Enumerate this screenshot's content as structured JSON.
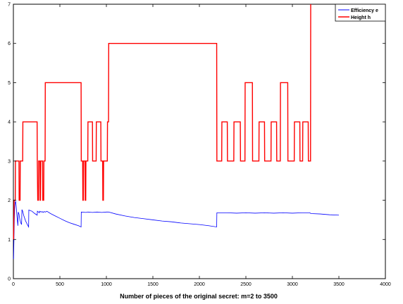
{
  "chart_data": {
    "type": "line",
    "title": "",
    "xlabel": "Number of pieces of the original secret: m=2 to 3500",
    "ylabel": "",
    "xlim": [
      0,
      4000
    ],
    "ylim": [
      0,
      7
    ],
    "xticks": [
      0,
      500,
      1000,
      1500,
      2000,
      2500,
      3000,
      3500,
      4000
    ],
    "yticks": [
      0,
      1,
      2,
      3,
      4,
      5,
      6,
      7
    ],
    "grid": false,
    "legend_position": "top-right",
    "series": [
      {
        "name": "Efficiency e",
        "color": "#0000ff",
        "points": [
          [
            2,
            0.5
          ],
          [
            6,
            1.0
          ],
          [
            10,
            1.5
          ],
          [
            14,
            1.8
          ],
          [
            18,
            1.93
          ],
          [
            24,
            1.98
          ],
          [
            30,
            1.85
          ],
          [
            40,
            1.55
          ],
          [
            48,
            1.35
          ],
          [
            52,
            1.7
          ],
          [
            60,
            1.65
          ],
          [
            70,
            1.5
          ],
          [
            80,
            1.42
          ],
          [
            88,
            1.38
          ],
          [
            92,
            1.76
          ],
          [
            100,
            1.72
          ],
          [
            110,
            1.62
          ],
          [
            130,
            1.48
          ],
          [
            150,
            1.38
          ],
          [
            164,
            1.32
          ],
          [
            166,
            1.75
          ],
          [
            200,
            1.72
          ],
          [
            230,
            1.66
          ],
          [
            256,
            1.62
          ],
          [
            258,
            1.72
          ],
          [
            270,
            1.7
          ],
          [
            280,
            1.68
          ],
          [
            282,
            1.72
          ],
          [
            300,
            1.7
          ],
          [
            310,
            1.71
          ],
          [
            320,
            1.69
          ],
          [
            330,
            1.71
          ],
          [
            345,
            1.7
          ],
          [
            360,
            1.72
          ],
          [
            400,
            1.66
          ],
          [
            450,
            1.6
          ],
          [
            500,
            1.54
          ],
          [
            550,
            1.48
          ],
          [
            600,
            1.43
          ],
          [
            650,
            1.39
          ],
          [
            700,
            1.35
          ],
          [
            728,
            1.32
          ],
          [
            730,
            1.7
          ],
          [
            780,
            1.69
          ],
          [
            800,
            1.7
          ],
          [
            850,
            1.69
          ],
          [
            900,
            1.7
          ],
          [
            950,
            1.69
          ],
          [
            1000,
            1.7
          ],
          [
            1024,
            1.7
          ],
          [
            1100,
            1.65
          ],
          [
            1200,
            1.6
          ],
          [
            1300,
            1.56
          ],
          [
            1400,
            1.53
          ],
          [
            1500,
            1.5
          ],
          [
            1600,
            1.47
          ],
          [
            1700,
            1.45
          ],
          [
            1800,
            1.42
          ],
          [
            1900,
            1.4
          ],
          [
            2000,
            1.38
          ],
          [
            2100,
            1.35
          ],
          [
            2186,
            1.32
          ],
          [
            2188,
            1.68
          ],
          [
            2300,
            1.68
          ],
          [
            2400,
            1.67
          ],
          [
            2500,
            1.68
          ],
          [
            2600,
            1.67
          ],
          [
            2700,
            1.68
          ],
          [
            2800,
            1.67
          ],
          [
            2900,
            1.68
          ],
          [
            3000,
            1.67
          ],
          [
            3100,
            1.68
          ],
          [
            3187,
            1.68
          ],
          [
            3200,
            1.66
          ],
          [
            3300,
            1.65
          ],
          [
            3400,
            1.63
          ],
          [
            3500,
            1.62
          ]
        ]
      },
      {
        "name": "Height h",
        "color": "#ff0000",
        "points": [
          [
            2,
            1
          ],
          [
            8,
            2
          ],
          [
            20,
            2
          ],
          [
            22,
            3
          ],
          [
            60,
            3
          ],
          [
            62,
            2
          ],
          [
            72,
            2
          ],
          [
            74,
            3
          ],
          [
            100,
            3
          ],
          [
            102,
            4
          ],
          [
            255,
            4
          ],
          [
            257,
            3
          ],
          [
            262,
            2
          ],
          [
            270,
            2
          ],
          [
            272,
            3
          ],
          [
            285,
            3
          ],
          [
            288,
            2
          ],
          [
            292,
            2
          ],
          [
            294,
            3
          ],
          [
            314,
            3
          ],
          [
            316,
            2
          ],
          [
            326,
            2
          ],
          [
            328,
            3
          ],
          [
            341,
            3
          ],
          [
            343,
            5
          ],
          [
            728,
            5
          ],
          [
            730,
            3
          ],
          [
            745,
            3
          ],
          [
            747,
            2
          ],
          [
            752,
            2
          ],
          [
            754,
            3
          ],
          [
            770,
            3
          ],
          [
            772,
            2
          ],
          [
            778,
            2
          ],
          [
            780,
            3
          ],
          [
            800,
            3
          ],
          [
            802,
            4
          ],
          [
            850,
            4
          ],
          [
            852,
            3
          ],
          [
            890,
            3
          ],
          [
            892,
            4
          ],
          [
            940,
            4
          ],
          [
            942,
            3
          ],
          [
            960,
            3
          ],
          [
            962,
            2
          ],
          [
            968,
            2
          ],
          [
            970,
            3
          ],
          [
            1010,
            3
          ],
          [
            1012,
            4
          ],
          [
            1023,
            4
          ],
          [
            1025,
            6
          ],
          [
            2186,
            6
          ],
          [
            2188,
            3
          ],
          [
            2240,
            3
          ],
          [
            2242,
            4
          ],
          [
            2300,
            4
          ],
          [
            2302,
            3
          ],
          [
            2370,
            3
          ],
          [
            2372,
            4
          ],
          [
            2440,
            4
          ],
          [
            2442,
            3
          ],
          [
            2490,
            3
          ],
          [
            2492,
            5
          ],
          [
            2570,
            5
          ],
          [
            2572,
            3
          ],
          [
            2640,
            3
          ],
          [
            2642,
            4
          ],
          [
            2700,
            4
          ],
          [
            2702,
            3
          ],
          [
            2770,
            3
          ],
          [
            2772,
            4
          ],
          [
            2830,
            4
          ],
          [
            2832,
            3
          ],
          [
            2870,
            3
          ],
          [
            2872,
            5
          ],
          [
            2950,
            5
          ],
          [
            2952,
            3
          ],
          [
            3020,
            3
          ],
          [
            3022,
            4
          ],
          [
            3080,
            4
          ],
          [
            3082,
            3
          ],
          [
            3110,
            3
          ],
          [
            3112,
            4
          ],
          [
            3170,
            4
          ],
          [
            3172,
            3
          ],
          [
            3195,
            3
          ],
          [
            3197,
            7
          ]
        ]
      }
    ]
  }
}
